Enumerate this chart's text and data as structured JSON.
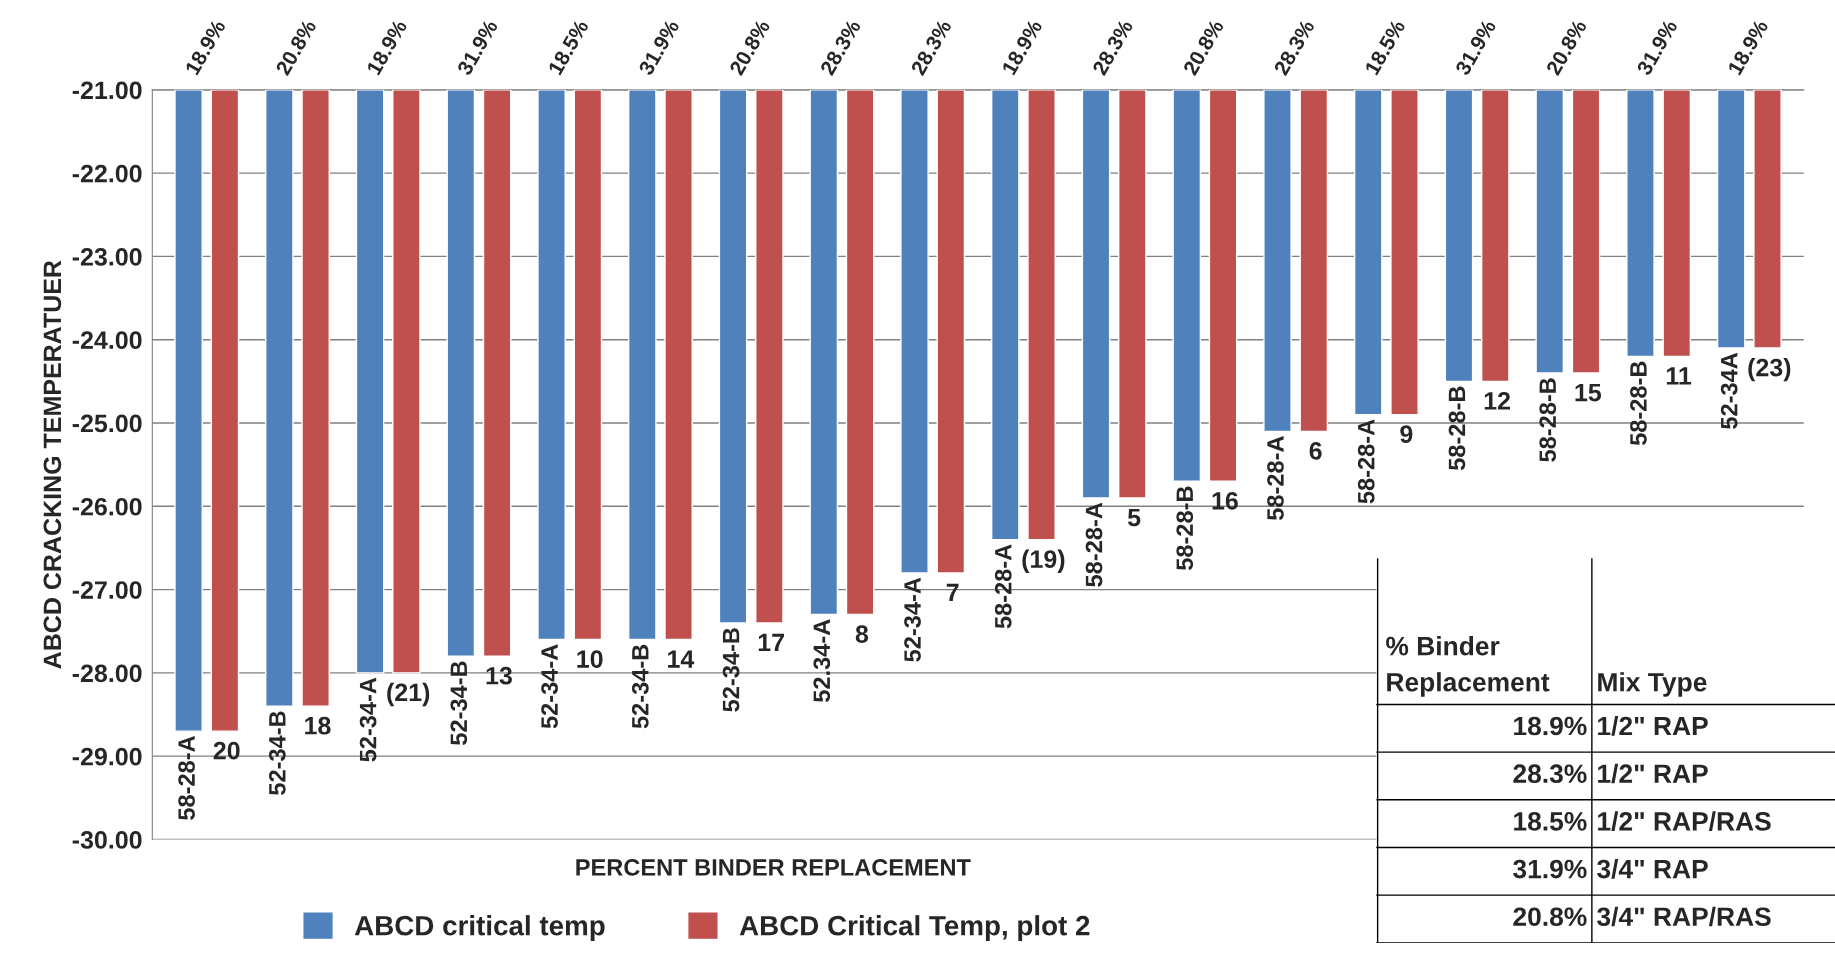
{
  "chart_data": {
    "type": "bar",
    "xlabel": "PERCENT BINDER REPLACEMENT",
    "ylabel": "ABCD CRACKING TEMPERATUER",
    "categories": [
      "18.9%",
      "20.8%",
      "18.9%",
      "31.9%",
      "18.5%",
      "31.9%",
      "20.8%",
      "28.3%",
      "28.3%",
      "18.9%",
      "28.3%",
      "20.8%",
      "28.3%",
      "18.5%",
      "31.9%",
      "20.8%",
      "31.9%",
      "18.9%"
    ],
    "series": [
      {
        "name": "ABCD critical temp",
        "color": "#4f81bd",
        "values": [
          -28.7,
          -28.4,
          -28.0,
          -27.8,
          -27.6,
          -27.6,
          -27.4,
          -27.3,
          -26.8,
          -26.4,
          -25.9,
          -25.7,
          -25.1,
          -24.9,
          -24.5,
          -24.4,
          -24.2,
          -24.1
        ]
      },
      {
        "name": "ABCD Critical Temp, plot 2",
        "color": "#c0504d",
        "values": [
          -28.7,
          -28.4,
          -28.0,
          -27.8,
          -27.6,
          -27.6,
          -27.4,
          -27.3,
          -26.8,
          -26.4,
          -25.9,
          -25.7,
          -25.1,
          -24.9,
          -24.5,
          -24.4,
          -24.2,
          -24.1
        ]
      }
    ],
    "ylim": [
      -30,
      -21
    ],
    "yticks": [
      {
        "value": -30,
        "label": "-30.00"
      },
      {
        "value": -29,
        "label": "-29.00"
      },
      {
        "value": -28,
        "label": "-28.00"
      },
      {
        "value": -27,
        "label": "-27.00"
      },
      {
        "value": -26,
        "label": "-26.00"
      },
      {
        "value": -25,
        "label": "-25.00"
      },
      {
        "value": -24,
        "label": "-24.00"
      },
      {
        "value": -23,
        "label": "-23.00"
      },
      {
        "value": -22,
        "label": "-22.00"
      },
      {
        "value": -21,
        "label": "-21.00"
      }
    ],
    "grid": "y",
    "legend": "bottom",
    "annotations": [
      "% Binder\nReplacement",
      "Mix Type",
      "18.9%",
      "1/2\" RAP",
      "28.3%",
      "1/2\" RAP",
      "18.5%",
      "1/2\" RAP/RAS",
      "31.9%",
      "3/4\" RAP",
      "20.8%",
      "3/4\" RAP/RAS",
      "58-28-A",
      "20",
      "52-34-B",
      "18",
      "52-34-A",
      "(21)",
      "52-34-B",
      "13",
      "52-34-A",
      "10",
      "52-34-B",
      "14",
      "52-34-B",
      "17",
      "52.34-A",
      "8",
      "52-34-A",
      "7",
      "58-28-A",
      "(19)",
      "58-28-A",
      "5",
      "58-28-B",
      "16",
      "58-28-A",
      "6",
      "58-28-A",
      "9",
      "58-28-B",
      "12",
      "58-28-B",
      "15",
      "58-28-B",
      "11",
      "52-34A",
      "(23)"
    ]
  }
}
